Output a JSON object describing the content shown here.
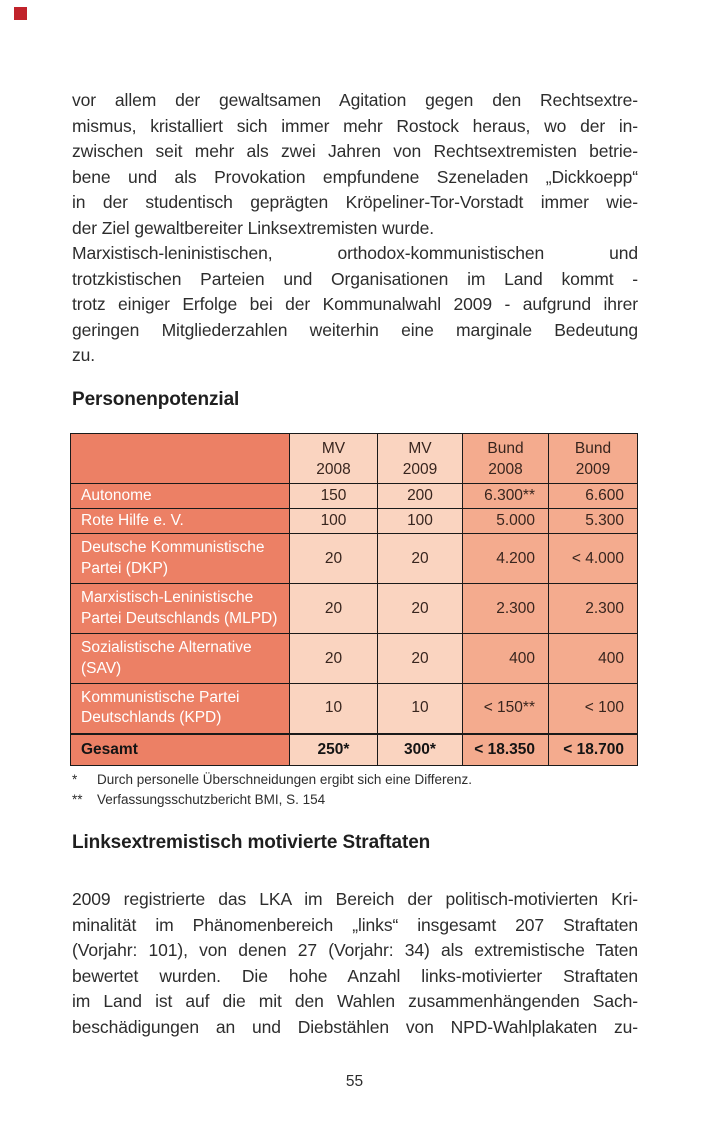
{
  "page": {
    "number": "55"
  },
  "colors": {
    "accent_salmon": "#ec8065",
    "accent_peach": "#fad4c0",
    "accent_mid": "#f4ab8e",
    "table_border": "#1a1a1a",
    "marker_red": "#c1232b",
    "body_text": "#2d2d2d",
    "table_text": "#38251e",
    "label_text": "#ffffff"
  },
  "headings": {
    "section1": "Personenpotenzial",
    "section2": "Linksextremistisch motivierte Straftaten"
  },
  "paragraph_block1": {
    "lines": [
      {
        "text": "vor allem der gewaltsamen Agitation gegen den Rechtsextre-",
        "justify": true
      },
      {
        "text": "mismus, kristalliert sich immer mehr Rostock heraus, wo der in-",
        "justify": true
      },
      {
        "text": "zwischen seit mehr als zwei Jahren von Rechtsextremisten betrie-",
        "justify": true
      },
      {
        "text": "bene und als Provokation empfundene Szeneladen „Dickkoepp“",
        "justify": true
      },
      {
        "text": "in der studentisch geprägten Kröpeliner-Tor-Vorstadt immer wie-",
        "justify": true
      },
      {
        "text": "der Ziel gewaltbereiter Linksextremisten wurde.",
        "justify": false
      },
      {
        "text": "Marxistisch-leninistischen, orthodox-kommunistischen und",
        "justify": true
      },
      {
        "text": "trotzkistischen Parteien und Organisationen im Land kommt -",
        "justify": true
      },
      {
        "text": "trotz einiger Erfolge bei der Kommunalwahl 2009 - aufgrund ihrer",
        "justify": true
      },
      {
        "text": "geringen Mitgliederzahlen weiterhin eine marginale Bedeutung",
        "justify": true
      },
      {
        "text": "zu.",
        "justify": false
      }
    ]
  },
  "paragraph_block2": {
    "lines": [
      {
        "text": "2009 registrierte das LKA im Bereich der politisch-motivierten Kri-",
        "justify": true
      },
      {
        "text": "minalität im Phänomenbereich „links“ insgesamt 207 Straftaten",
        "justify": true
      },
      {
        "text": "(Vorjahr: 101), von denen 27 (Vorjahr: 34) als extremistische Taten",
        "justify": true
      },
      {
        "text": "bewertet wurden. Die hohe Anzahl links-motivierter Straftaten",
        "justify": true
      },
      {
        "text": "im Land ist auf die mit den Wahlen zusammenhängenden Sach-",
        "justify": true
      },
      {
        "text": "beschädigungen an und Diebstählen von NPD-Wahlplakaten zu-",
        "justify": true
      }
    ]
  },
  "table": {
    "header": {
      "corner": "",
      "cols": [
        {
          "line1": "MV",
          "line2": "2008"
        },
        {
          "line1": "MV",
          "line2": "2009"
        },
        {
          "line1": "Bund",
          "line2": "2008"
        },
        {
          "line1": "Bund",
          "line2": "2009"
        }
      ]
    },
    "rows": [
      {
        "label": "Autonome",
        "mv2008": "150",
        "mv2009": "200",
        "bund2008": "6.300**",
        "bund2009": "6.600"
      },
      {
        "label": "Rote Hilfe e. V.",
        "mv2008": "100",
        "mv2009": "100",
        "bund2008": "5.000",
        "bund2009": "5.300"
      },
      {
        "label": "Deutsche Kommunistische Partei (DKP)",
        "mv2008": "20",
        "mv2009": "20",
        "bund2008": "4.200",
        "bund2009": "< 4.000"
      },
      {
        "label": "Marxistisch-Leninistische Partei Deutschlands (MLPD)",
        "mv2008": "20",
        "mv2009": "20",
        "bund2008": "2.300",
        "bund2009": "2.300"
      },
      {
        "label": "Sozialistische Alternative (SAV)",
        "mv2008": "20",
        "mv2009": "20",
        "bund2008": "400",
        "bund2009": "400"
      },
      {
        "label": "Kommunistische Partei Deutschlands (KPD)",
        "mv2008": "10",
        "mv2009": "10",
        "bund2008": "< 150**",
        "bund2009": "< 100"
      }
    ],
    "total": {
      "label": "Gesamt",
      "mv2008": "250*",
      "mv2009": "300*",
      "bund2008": "< 18.350",
      "bund2009": "< 18.700"
    }
  },
  "footnotes": [
    {
      "marker": "*",
      "text": "Durch personelle Überschneidungen ergibt sich eine Differenz."
    },
    {
      "marker": "**",
      "text": "Verfassungsschutzbericht BMI, S. 154"
    }
  ]
}
